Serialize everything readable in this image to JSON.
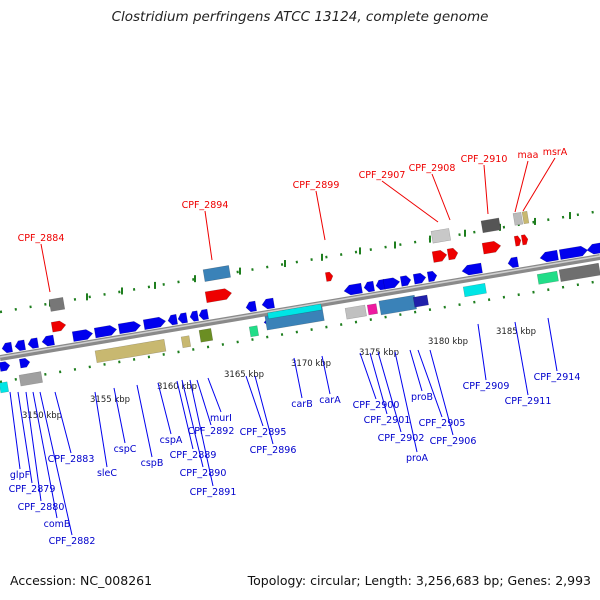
{
  "title": "Clostridium perfringens ATCC 13124, complete genome",
  "accession": "Accession: NC_008261",
  "topology": "Topology: circular; Length: 3,256,683 bp; Genes: 2,993",
  "colors": {
    "forward": "#0000ee",
    "reverse": "#0000ee",
    "red": "#ee0000",
    "green": "#1a6e1a",
    "khaki": "#c8b870",
    "gray": "#777777",
    "cyan": "#00e5e5",
    "teal": "#3a82b8",
    "olive": "#6b8e23"
  },
  "scale_labels": [
    "3150 kbp",
    "3155 kbp",
    "3160 kbp",
    "3165 kbp",
    "3170 kbp",
    "3175 kbp",
    "3180 kbp",
    "3185 kbp"
  ],
  "top_labels": [
    "CPF_2884",
    "CPF_2894",
    "CPF_2899",
    "CPF_2907",
    "CPF_2908",
    "CPF_2910",
    "maa",
    "msrA"
  ],
  "bottom_labels": [
    "glpF",
    "CPF_2879",
    "CPF_2880",
    "comB",
    "CPF_2882",
    "CPF_2883",
    "sleC",
    "cspC",
    "cspB",
    "cspA",
    "CPF_2889",
    "CPF_2890",
    "CPF_2891",
    "CPF_2892",
    "murI",
    "CPF_2895",
    "CPF_2896",
    "carB",
    "carA",
    "CPF_2900",
    "CPF_2901",
    "CPF_2902",
    "proA",
    "proB",
    "CPF_2905",
    "CPF_2906",
    "CPF_2909",
    "CPF_2911",
    "CPF_2914"
  ]
}
